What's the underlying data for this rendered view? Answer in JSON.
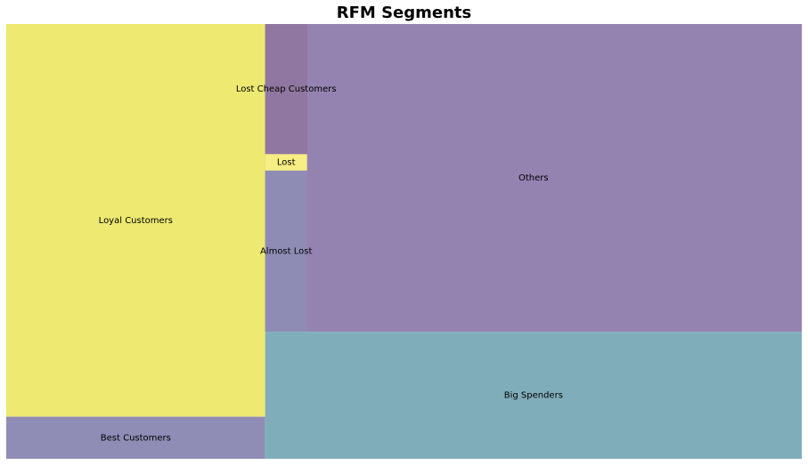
{
  "chart_data": {
    "type": "treemap",
    "title": "RFM Segments",
    "categories": [
      "Loyal Customers",
      "Best Customers",
      "Lost Cheap Customers",
      "Lost",
      "Almost Lost",
      "Others",
      "Big Spenders"
    ],
    "values": [
      1175,
      126,
      63,
      8,
      78,
      1759,
      788
    ],
    "colors": [
      "#ede971",
      "#8f8cb5",
      "#9077a1",
      "#f6ee82",
      "#8e8cb5",
      "#9483b0",
      "#80adba"
    ]
  }
}
